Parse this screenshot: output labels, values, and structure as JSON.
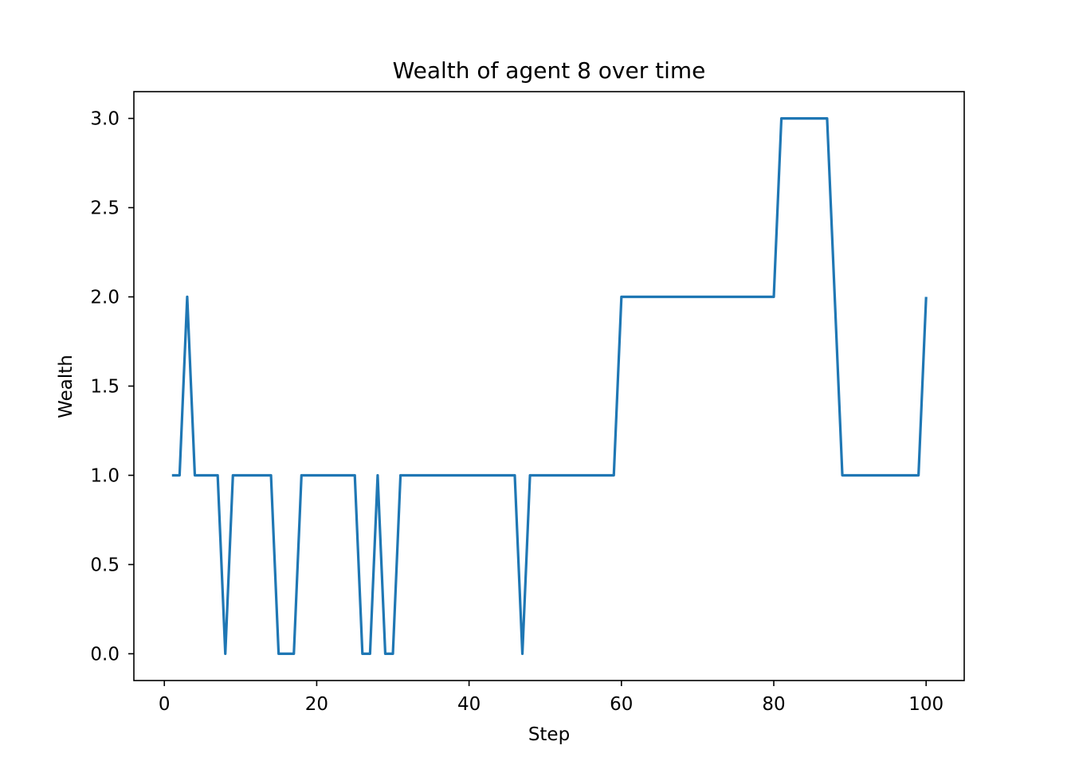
{
  "chart_data": {
    "type": "line",
    "title": "Wealth of agent 8 over time",
    "xlabel": "Step",
    "ylabel": "Wealth",
    "xlim": [
      -4,
      105
    ],
    "ylim": [
      -0.15,
      3.15
    ],
    "xticks": [
      0,
      20,
      40,
      60,
      80,
      100
    ],
    "xtick_labels": [
      "0",
      "20",
      "40",
      "60",
      "80",
      "100"
    ],
    "yticks": [
      0.0,
      0.5,
      1.0,
      1.5,
      2.0,
      2.5,
      3.0
    ],
    "ytick_labels": [
      "0.0",
      "0.5",
      "1.0",
      "1.5",
      "2.0",
      "2.5",
      "3.0"
    ],
    "grid": false,
    "series": [
      {
        "color": "#1f77b4",
        "x": [
          1,
          2,
          3,
          4,
          5,
          6,
          7,
          8,
          9,
          10,
          11,
          12,
          13,
          14,
          15,
          16,
          17,
          18,
          19,
          20,
          21,
          22,
          23,
          24,
          25,
          26,
          27,
          28,
          29,
          30,
          31,
          32,
          33,
          34,
          35,
          36,
          37,
          38,
          39,
          40,
          41,
          42,
          43,
          44,
          45,
          46,
          47,
          48,
          49,
          50,
          51,
          52,
          53,
          54,
          55,
          56,
          57,
          58,
          59,
          60,
          61,
          62,
          63,
          64,
          65,
          66,
          67,
          68,
          69,
          70,
          71,
          72,
          73,
          74,
          75,
          76,
          77,
          78,
          79,
          80,
          81,
          82,
          83,
          84,
          85,
          86,
          87,
          88,
          89,
          90,
          91,
          92,
          93,
          94,
          95,
          96,
          97,
          98,
          99,
          100
        ],
        "values": [
          1,
          1,
          2,
          1,
          1,
          1,
          1,
          0,
          1,
          1,
          1,
          1,
          1,
          1,
          0,
          0,
          0,
          1,
          1,
          1,
          1,
          1,
          1,
          1,
          1,
          0,
          0,
          1,
          0,
          0,
          1,
          1,
          1,
          1,
          1,
          1,
          1,
          1,
          1,
          1,
          1,
          1,
          1,
          1,
          1,
          1,
          0,
          1,
          1,
          1,
          1,
          1,
          1,
          1,
          1,
          1,
          1,
          1,
          1,
          2,
          2,
          2,
          2,
          2,
          2,
          2,
          2,
          2,
          2,
          2,
          2,
          2,
          2,
          2,
          2,
          2,
          2,
          2,
          2,
          2,
          3,
          3,
          3,
          3,
          3,
          3,
          3,
          2,
          1,
          1,
          1,
          1,
          1,
          1,
          1,
          1,
          1,
          1,
          1,
          2
        ]
      }
    ]
  }
}
